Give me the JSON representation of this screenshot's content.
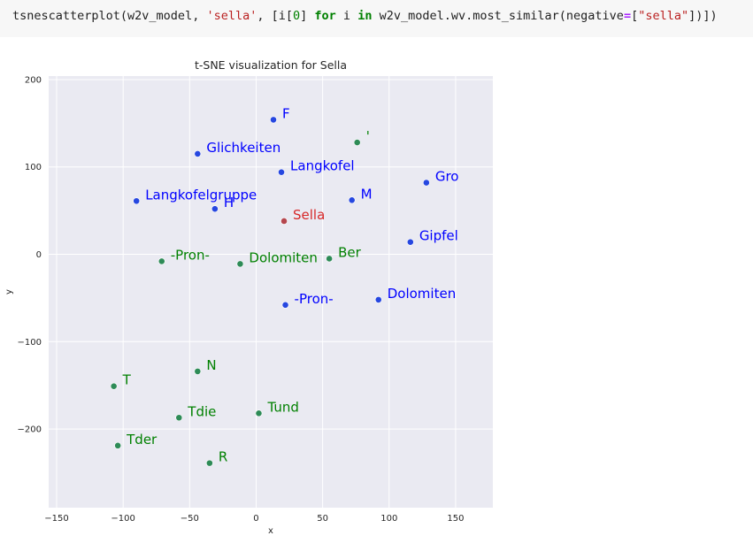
{
  "code": {
    "fn": "tsnescatterplot(w2v_model, ",
    "arg_str": "'sella'",
    "mid1": ", [i[",
    "zero": "0",
    "mid2": "] ",
    "kw_for": "for",
    "mid3": " i ",
    "kw_in": "in",
    "mid4": " w2v_model.wv.most_similar(negative",
    "eq": "=",
    "mid5": "[",
    "neg_str": "\"sella\"",
    "end": "])])"
  },
  "chart_data": {
    "type": "scatter",
    "title": "t-SNE visualization for Sella",
    "xlabel": "x",
    "ylabel": "y",
    "xlim": [
      -156,
      178
    ],
    "ylim": [
      -290,
      204
    ],
    "xticks": [
      -150,
      -100,
      -50,
      0,
      50,
      100,
      150
    ],
    "yticks": [
      200,
      100,
      0,
      -100,
      -200
    ],
    "xtick_labels": [
      "−150",
      "−100",
      "−50",
      "0",
      "50",
      "100",
      "150"
    ],
    "ytick_labels": [
      "200",
      "100",
      "0",
      "−100",
      "−200"
    ],
    "grid": true,
    "colors": {
      "red": "#d62728",
      "blue": "#0000ff",
      "green": "#008000",
      "blue_marker": "#2647e0",
      "green_marker": "#2e8b57",
      "red_marker": "#b5464e"
    },
    "points": [
      {
        "label": "Sella",
        "x": 21,
        "y": 38,
        "color": "red"
      },
      {
        "label": "F",
        "x": 13,
        "y": 154,
        "color": "blue"
      },
      {
        "label": "Glichkeiten",
        "x": -44,
        "y": 115,
        "color": "blue"
      },
      {
        "label": "Langkofel",
        "x": 19,
        "y": 94,
        "color": "blue"
      },
      {
        "label": "Gro",
        "x": 128,
        "y": 82,
        "color": "blue"
      },
      {
        "label": "Langkofelgruppe",
        "x": -90,
        "y": 61,
        "color": "blue"
      },
      {
        "label": "H",
        "x": -31,
        "y": 52,
        "color": "blue"
      },
      {
        "label": "M",
        "x": 72,
        "y": 62,
        "color": "blue"
      },
      {
        "label": "Gipfel",
        "x": 116,
        "y": 14,
        "color": "blue"
      },
      {
        "label": "-Pron-",
        "x": 22,
        "y": -58,
        "color": "blue"
      },
      {
        "label": "Dolomiten",
        "x": 92,
        "y": -52,
        "color": "blue"
      },
      {
        "label": "'",
        "x": 76,
        "y": 128,
        "color": "green"
      },
      {
        "label": "-Pron-",
        "x": -71,
        "y": -8,
        "color": "green"
      },
      {
        "label": "Dolomiten",
        "x": -12,
        "y": -11,
        "color": "green"
      },
      {
        "label": "Ber",
        "x": 55,
        "y": -5,
        "color": "green"
      },
      {
        "label": "N",
        "x": -44,
        "y": -134,
        "color": "green"
      },
      {
        "label": "T",
        "x": -107,
        "y": -151,
        "color": "green"
      },
      {
        "label": "Tdie",
        "x": -58,
        "y": -187,
        "color": "green"
      },
      {
        "label": "Tund",
        "x": 2,
        "y": -182,
        "color": "green"
      },
      {
        "label": "Tder",
        "x": -104,
        "y": -219,
        "color": "green"
      },
      {
        "label": "R",
        "x": -35,
        "y": -239,
        "color": "green"
      }
    ]
  }
}
